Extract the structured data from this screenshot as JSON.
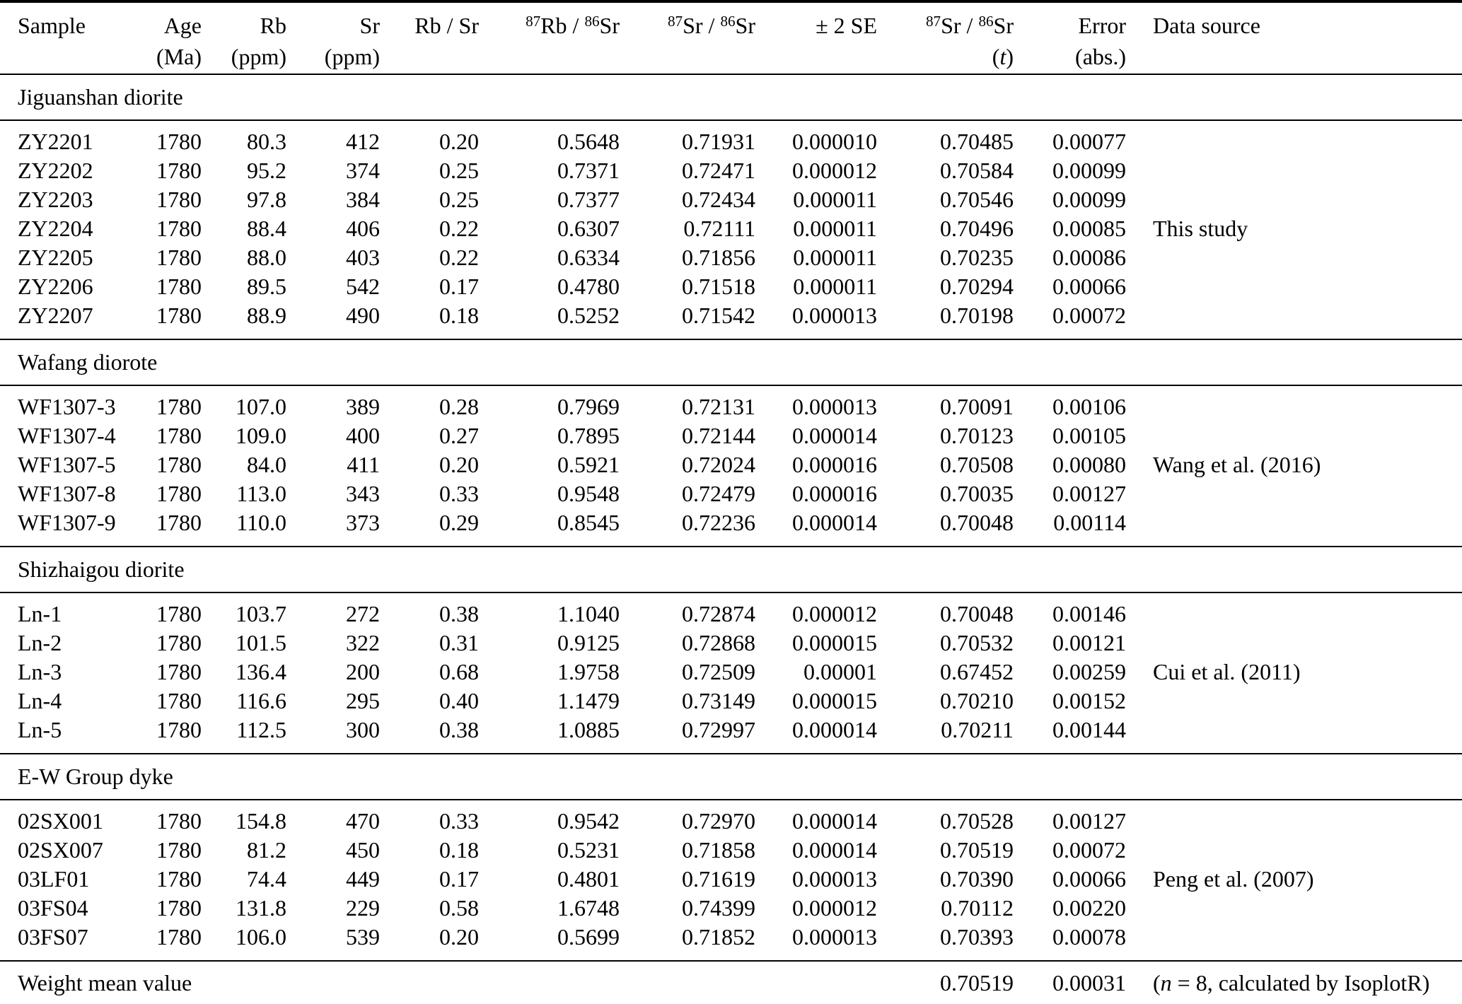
{
  "table": {
    "header": {
      "cols": [
        {
          "line1": "Sample",
          "line2": ""
        },
        {
          "line1": "Age",
          "line2": "(Ma)"
        },
        {
          "line1": "Rb",
          "line2": "(ppm)"
        },
        {
          "line1": "Sr",
          "line2": "(ppm)"
        },
        {
          "line1": "Rb / Sr",
          "line2": ""
        },
        {
          "sup1": "87",
          "t1": "Rb / ",
          "sup2": "86",
          "t2": "Sr",
          "line2": ""
        },
        {
          "sup1": "87",
          "t1": "Sr / ",
          "sup2": "86",
          "t2": "Sr",
          "line2": ""
        },
        {
          "line1": "± 2 SE",
          "line2": ""
        },
        {
          "sup1": "87",
          "t1": "Sr / ",
          "sup2": "86",
          "t2": "Sr",
          "line2_open": "(",
          "line2_italic": "t",
          "line2_close": ")"
        },
        {
          "line1": "Error",
          "line2": "(abs.)"
        },
        {
          "line1": "Data source",
          "line2": ""
        }
      ]
    },
    "sections": [
      {
        "title": "Jiguanshan diorite",
        "rows": [
          [
            "ZY2201",
            "1780",
            "80.3",
            "412",
            "0.20",
            "0.5648",
            "0.71931",
            "0.000010",
            "0.70485",
            "0.00077",
            ""
          ],
          [
            "ZY2202",
            "1780",
            "95.2",
            "374",
            "0.25",
            "0.7371",
            "0.72471",
            "0.000012",
            "0.70584",
            "0.00099",
            ""
          ],
          [
            "ZY2203",
            "1780",
            "97.8",
            "384",
            "0.25",
            "0.7377",
            "0.72434",
            "0.000011",
            "0.70546",
            "0.00099",
            ""
          ],
          [
            "ZY2204",
            "1780",
            "88.4",
            "406",
            "0.22",
            "0.6307",
            "0.72111",
            "0.000011",
            "0.70496",
            "0.00085",
            "This study"
          ],
          [
            "ZY2205",
            "1780",
            "88.0",
            "403",
            "0.22",
            "0.6334",
            "0.71856",
            "0.000011",
            "0.70235",
            "0.00086",
            ""
          ],
          [
            "ZY2206",
            "1780",
            "89.5",
            "542",
            "0.17",
            "0.4780",
            "0.71518",
            "0.000011",
            "0.70294",
            "0.00066",
            ""
          ],
          [
            "ZY2207",
            "1780",
            "88.9",
            "490",
            "0.18",
            "0.5252",
            "0.71542",
            "0.000013",
            "0.70198",
            "0.00072",
            ""
          ]
        ]
      },
      {
        "title": "Wafang diorote",
        "rows": [
          [
            "WF1307-3",
            "1780",
            "107.0",
            "389",
            "0.28",
            "0.7969",
            "0.72131",
            "0.000013",
            "0.70091",
            "0.00106",
            ""
          ],
          [
            "WF1307-4",
            "1780",
            "109.0",
            "400",
            "0.27",
            "0.7895",
            "0.72144",
            "0.000014",
            "0.70123",
            "0.00105",
            ""
          ],
          [
            "WF1307-5",
            "1780",
            "84.0",
            "411",
            "0.20",
            "0.5921",
            "0.72024",
            "0.000016",
            "0.70508",
            "0.00080",
            "Wang et al. (2016)"
          ],
          [
            "WF1307-8",
            "1780",
            "113.0",
            "343",
            "0.33",
            "0.9548",
            "0.72479",
            "0.000016",
            "0.70035",
            "0.00127",
            ""
          ],
          [
            "WF1307-9",
            "1780",
            "110.0",
            "373",
            "0.29",
            "0.8545",
            "0.72236",
            "0.000014",
            "0.70048",
            "0.00114",
            ""
          ]
        ]
      },
      {
        "title": "Shizhaigou diorite",
        "rows": [
          [
            "Ln-1",
            "1780",
            "103.7",
            "272",
            "0.38",
            "1.1040",
            "0.72874",
            "0.000012",
            "0.70048",
            "0.00146",
            ""
          ],
          [
            "Ln-2",
            "1780",
            "101.5",
            "322",
            "0.31",
            "0.9125",
            "0.72868",
            "0.000015",
            "0.70532",
            "0.00121",
            ""
          ],
          [
            "Ln-3",
            "1780",
            "136.4",
            "200",
            "0.68",
            "1.9758",
            "0.72509",
            "0.00001",
            "0.67452",
            "0.00259",
            "Cui et al. (2011)"
          ],
          [
            "Ln-4",
            "1780",
            "116.6",
            "295",
            "0.40",
            "1.1479",
            "0.73149",
            "0.000015",
            "0.70210",
            "0.00152",
            ""
          ],
          [
            "Ln-5",
            "1780",
            "112.5",
            "300",
            "0.38",
            "1.0885",
            "0.72997",
            "0.000014",
            "0.70211",
            "0.00144",
            ""
          ]
        ]
      },
      {
        "title": "E-W Group dyke",
        "rows": [
          [
            "02SX001",
            "1780",
            "154.8",
            "470",
            "0.33",
            "0.9542",
            "0.72970",
            "0.000014",
            "0.70528",
            "0.00127",
            ""
          ],
          [
            "02SX007",
            "1780",
            "81.2",
            "450",
            "0.18",
            "0.5231",
            "0.71858",
            "0.000014",
            "0.70519",
            "0.00072",
            ""
          ],
          [
            "03LF01",
            "1780",
            "74.4",
            "449",
            "0.17",
            "0.4801",
            "0.71619",
            "0.000013",
            "0.70390",
            "0.00066",
            "Peng et al. (2007)"
          ],
          [
            "03FS04",
            "1780",
            "131.8",
            "229",
            "0.58",
            "1.6748",
            "0.74399",
            "0.000012",
            "0.70112",
            "0.00220",
            ""
          ],
          [
            "03FS07",
            "1780",
            "106.0",
            "539",
            "0.20",
            "0.5699",
            "0.71852",
            "0.000013",
            "0.70393",
            "0.00078",
            ""
          ]
        ]
      }
    ],
    "summary": {
      "label": "Weight mean value",
      "sr87_sr86_t": "0.70519",
      "error_abs": "0.00031",
      "note_open": "(",
      "note_italic": "n",
      "note_rest": " = 8, calculated by IsoplotR)"
    },
    "colors": {
      "text": "#000000",
      "background": "#ffffff",
      "rule": "#000000"
    }
  }
}
